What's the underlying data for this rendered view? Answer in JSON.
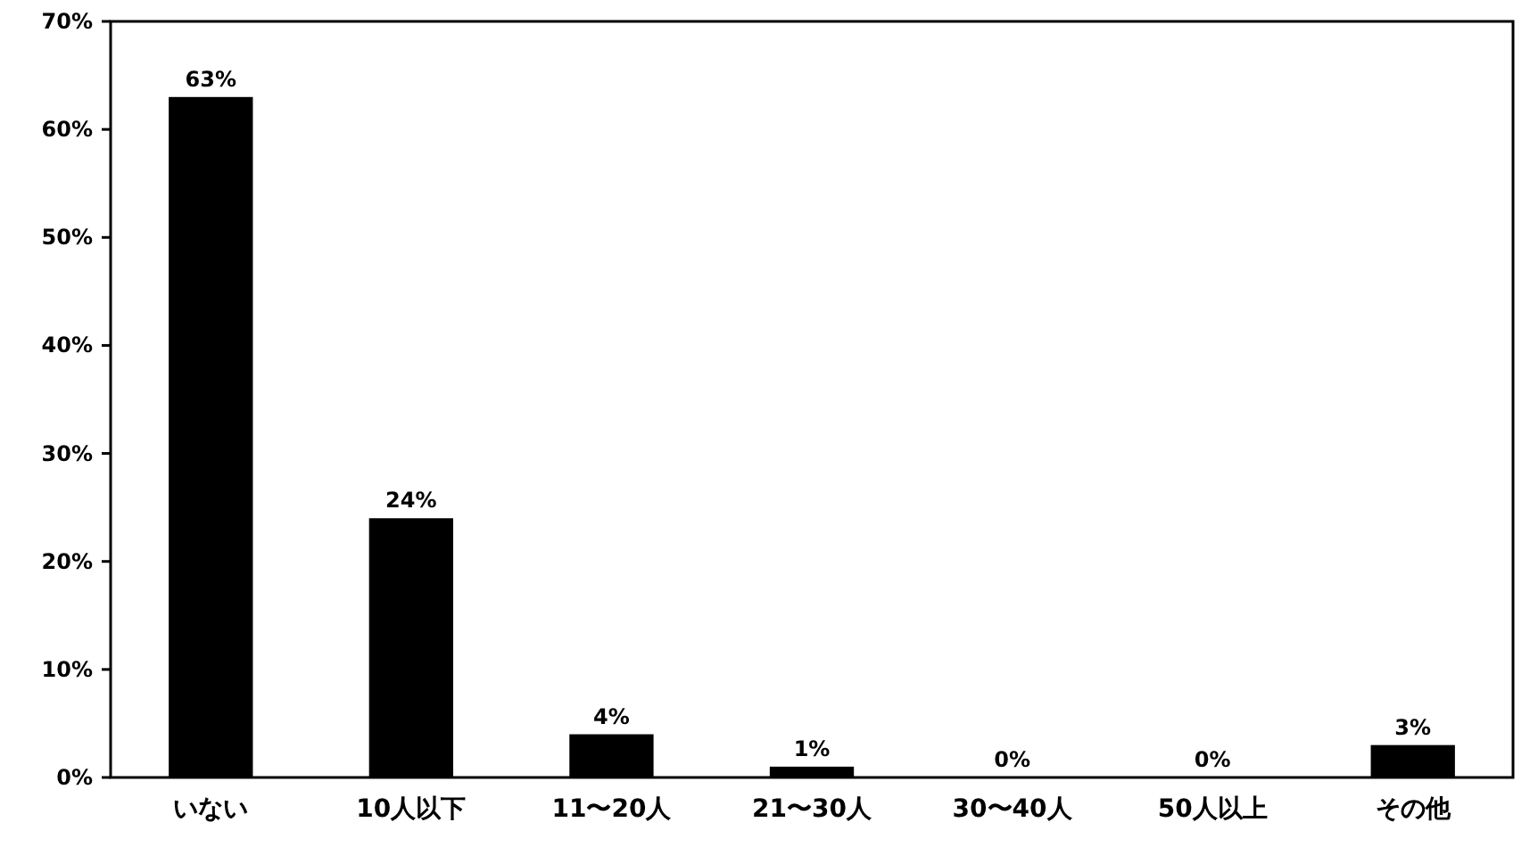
{
  "chart_data": {
    "type": "bar",
    "categories": [
      "いない",
      "10人以下",
      "11〜20人",
      "21〜30人",
      "30〜40人",
      "50人以上",
      "その他"
    ],
    "values": [
      63,
      24,
      4,
      1,
      0,
      0,
      3
    ],
    "value_labels": [
      "63%",
      "24%",
      "4%",
      "1%",
      "0%",
      "0%",
      "3%"
    ],
    "color": "#000000",
    "ylim": [
      0,
      70
    ],
    "yticks": [
      {
        "value": 0,
        "label": "0%"
      },
      {
        "value": 10,
        "label": "10%"
      },
      {
        "value": 20,
        "label": "20%"
      },
      {
        "value": 30,
        "label": "30%"
      },
      {
        "value": 40,
        "label": "40%"
      },
      {
        "value": 50,
        "label": "50%"
      },
      {
        "value": 60,
        "label": "60%"
      },
      {
        "value": 70,
        "label": "70%"
      }
    ],
    "grid": false
  }
}
